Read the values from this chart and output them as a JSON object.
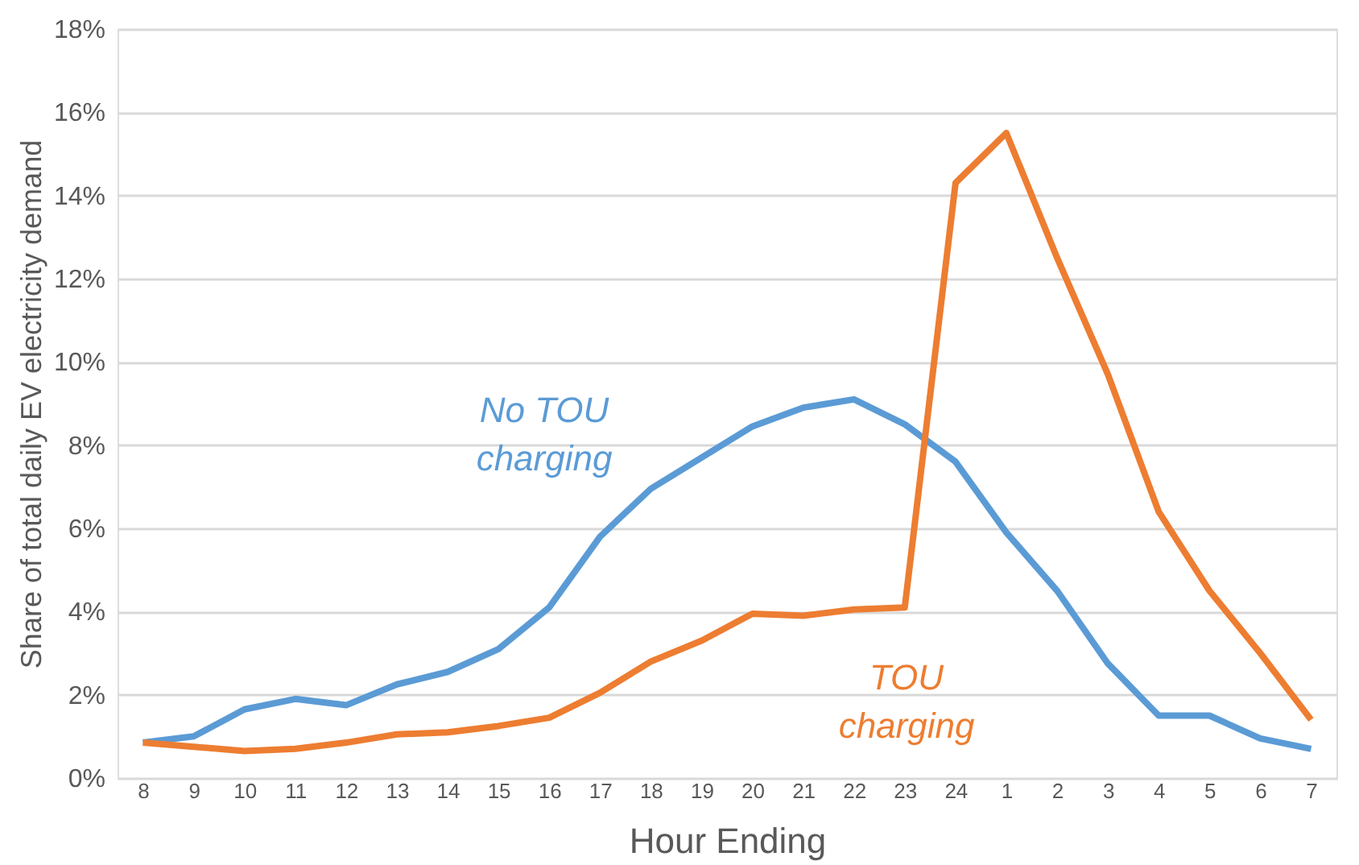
{
  "chart_data": {
    "type": "line",
    "xlabel": "Hour Ending",
    "ylabel": "Share of total daily EV electricity demand",
    "categories": [
      "8",
      "9",
      "10",
      "11",
      "12",
      "13",
      "14",
      "15",
      "16",
      "17",
      "18",
      "19",
      "20",
      "21",
      "22",
      "23",
      "24",
      "1",
      "2",
      "3",
      "4",
      "5",
      "6",
      "7"
    ],
    "series": [
      {
        "color": "#5b9bd5",
        "values": [
          0.85,
          1.0,
          1.65,
          1.9,
          1.75,
          2.25,
          2.55,
          3.1,
          4.1,
          5.8,
          6.95,
          7.7,
          8.45,
          8.9,
          9.1,
          8.5,
          7.6,
          5.9,
          4.5,
          2.75,
          1.5,
          1.5,
          0.95,
          0.7
        ]
      },
      {
        "color": "#ed7d31",
        "values": [
          0.85,
          0.75,
          0.65,
          0.7,
          0.85,
          1.05,
          1.1,
          1.25,
          1.45,
          2.05,
          2.8,
          3.3,
          3.95,
          3.9,
          4.05,
          4.1,
          14.3,
          15.5,
          12.5,
          9.7,
          6.4,
          4.5,
          3.0,
          1.4
        ]
      }
    ],
    "annotations": [
      "No TOU charging",
      "TOU charging"
    ],
    "ylim": [
      0,
      18
    ],
    "yticks": [
      {
        "value": 0,
        "label": "0%"
      },
      {
        "value": 2,
        "label": "2%"
      },
      {
        "value": 4,
        "label": "4%"
      },
      {
        "value": 6,
        "label": "6%"
      },
      {
        "value": 8,
        "label": "8%"
      },
      {
        "value": 10,
        "label": "10%"
      },
      {
        "value": 12,
        "label": "12%"
      },
      {
        "value": 14,
        "label": "14%"
      },
      {
        "value": 16,
        "label": "16%"
      },
      {
        "value": 18,
        "label": "18%"
      }
    ],
    "grid": "y",
    "legend": false,
    "marker": "none",
    "line_style": "solid"
  }
}
